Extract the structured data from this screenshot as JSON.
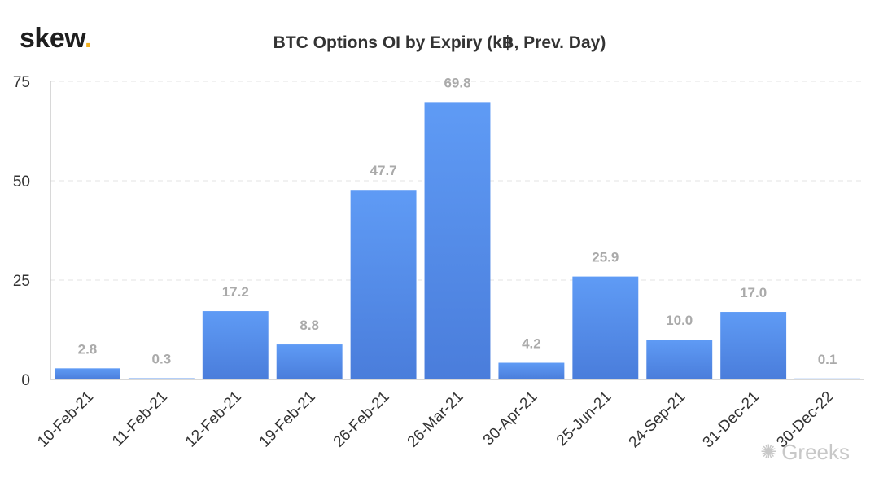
{
  "brand": {
    "name": "skew",
    "dot": "."
  },
  "watermark": {
    "text": "Greeks",
    "icon": "wechat-icon"
  },
  "chart_data": {
    "type": "bar",
    "title": "BTC Options OI by Expiry (k฿, Prev. Day)",
    "xlabel": "",
    "ylabel": "",
    "categories": [
      "10-Feb-21",
      "11-Feb-21",
      "12-Feb-21",
      "19-Feb-21",
      "26-Feb-21",
      "26-Mar-21",
      "30-Apr-21",
      "25-Jun-21",
      "24-Sep-21",
      "31-Dec-21",
      "30-Dec-22"
    ],
    "values": [
      2.8,
      0.3,
      17.2,
      8.8,
      47.7,
      69.8,
      4.2,
      25.9,
      10.0,
      17.0,
      0.1
    ],
    "value_labels": [
      "2.8",
      "0.3",
      "17.2",
      "8.8",
      "47.7",
      "69.8",
      "4.2",
      "25.9",
      "10.0",
      "17.0",
      "0.1"
    ],
    "ylim": [
      0,
      75
    ],
    "yticks": [
      0,
      25,
      50,
      75
    ],
    "grid": true,
    "legend": "none",
    "colors": {
      "bar_top": "#5f9bf5",
      "bar_bottom": "#4a7ddb",
      "label": "#aaaaaa",
      "axis": "#cccccc",
      "grid": "#e3e3e3"
    }
  }
}
